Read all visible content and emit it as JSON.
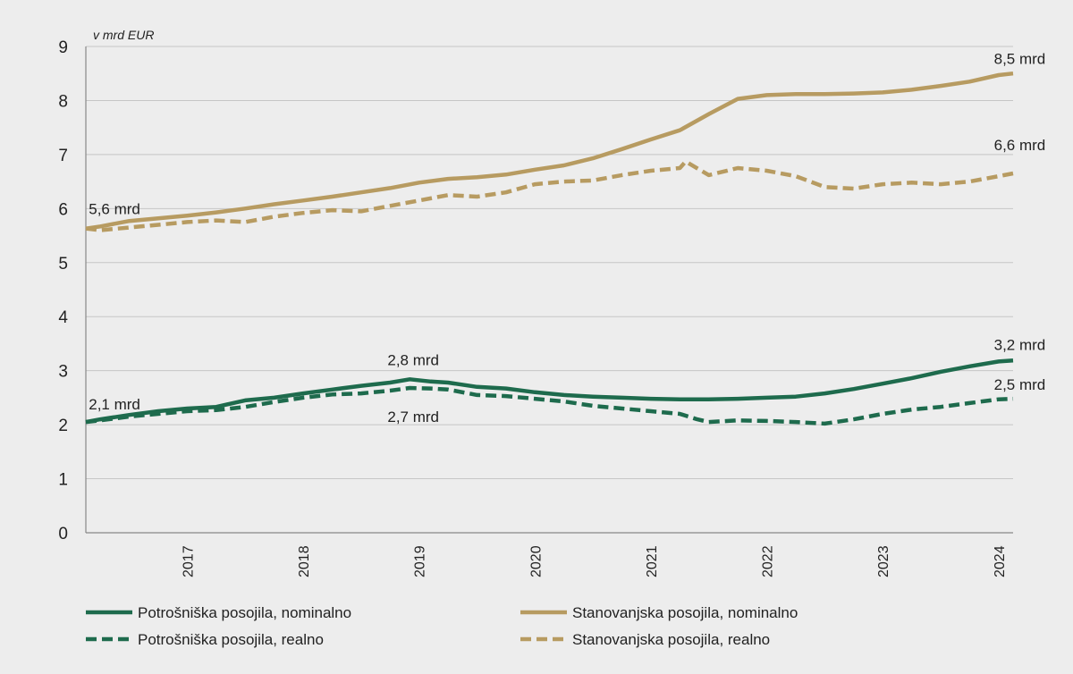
{
  "chart_data": {
    "type": "line",
    "unit_label": "v mrd EUR",
    "ylim": [
      0,
      9
    ],
    "yticks": [
      "0",
      "1",
      "2",
      "3",
      "4",
      "5",
      "6",
      "7",
      "8",
      "9"
    ],
    "x_range": [
      2016.625,
      2024.625
    ],
    "xticks": [
      "2017",
      "2018",
      "2019",
      "2020",
      "2021",
      "2022",
      "2023",
      "2024"
    ],
    "grid": true,
    "legend_position": "bottom",
    "series": [
      {
        "name": "Potrošniška posojila, nominalno",
        "color": "#1e6b4d",
        "dash": false,
        "points": [
          [
            2016.625,
            2.05
          ],
          [
            2016.75,
            2.1
          ],
          [
            2017.0,
            2.18
          ],
          [
            2017.25,
            2.25
          ],
          [
            2017.5,
            2.3
          ],
          [
            2017.75,
            2.33
          ],
          [
            2018.0,
            2.45
          ],
          [
            2018.25,
            2.5
          ],
          [
            2018.5,
            2.58
          ],
          [
            2018.75,
            2.65
          ],
          [
            2019.0,
            2.72
          ],
          [
            2019.25,
            2.78
          ],
          [
            2019.42,
            2.84
          ],
          [
            2019.6,
            2.8
          ],
          [
            2019.75,
            2.78
          ],
          [
            2020.0,
            2.7
          ],
          [
            2020.25,
            2.67
          ],
          [
            2020.5,
            2.6
          ],
          [
            2020.75,
            2.55
          ],
          [
            2021.0,
            2.52
          ],
          [
            2021.25,
            2.5
          ],
          [
            2021.5,
            2.48
          ],
          [
            2021.75,
            2.47
          ],
          [
            2022.0,
            2.47
          ],
          [
            2022.25,
            2.48
          ],
          [
            2022.5,
            2.5
          ],
          [
            2022.75,
            2.52
          ],
          [
            2023.0,
            2.58
          ],
          [
            2023.25,
            2.66
          ],
          [
            2023.5,
            2.76
          ],
          [
            2023.75,
            2.86
          ],
          [
            2024.0,
            2.98
          ],
          [
            2024.25,
            3.08
          ],
          [
            2024.5,
            3.17
          ],
          [
            2024.625,
            3.19
          ]
        ]
      },
      {
        "name": "Potrošniška posojila, realno",
        "color": "#1e6b4d",
        "dash": true,
        "points": [
          [
            2016.625,
            2.05
          ],
          [
            2016.75,
            2.08
          ],
          [
            2017.0,
            2.15
          ],
          [
            2017.25,
            2.2
          ],
          [
            2017.5,
            2.25
          ],
          [
            2017.75,
            2.27
          ],
          [
            2018.0,
            2.33
          ],
          [
            2018.25,
            2.42
          ],
          [
            2018.5,
            2.5
          ],
          [
            2018.75,
            2.56
          ],
          [
            2019.0,
            2.58
          ],
          [
            2019.25,
            2.63
          ],
          [
            2019.42,
            2.68
          ],
          [
            2019.6,
            2.67
          ],
          [
            2019.75,
            2.65
          ],
          [
            2020.0,
            2.55
          ],
          [
            2020.25,
            2.53
          ],
          [
            2020.5,
            2.48
          ],
          [
            2020.75,
            2.43
          ],
          [
            2021.0,
            2.35
          ],
          [
            2021.25,
            2.3
          ],
          [
            2021.5,
            2.25
          ],
          [
            2021.75,
            2.2
          ],
          [
            2021.9,
            2.1
          ],
          [
            2022.0,
            2.05
          ],
          [
            2022.25,
            2.08
          ],
          [
            2022.5,
            2.07
          ],
          [
            2022.75,
            2.05
          ],
          [
            2023.0,
            2.02
          ],
          [
            2023.25,
            2.1
          ],
          [
            2023.5,
            2.2
          ],
          [
            2023.75,
            2.28
          ],
          [
            2024.0,
            2.33
          ],
          [
            2024.25,
            2.4
          ],
          [
            2024.5,
            2.47
          ],
          [
            2024.625,
            2.48
          ]
        ]
      },
      {
        "name": "Stanovanjska posojila, nominalno",
        "color": "#b79b61",
        "dash": false,
        "points": [
          [
            2016.625,
            5.63
          ],
          [
            2016.75,
            5.67
          ],
          [
            2017.0,
            5.77
          ],
          [
            2017.25,
            5.82
          ],
          [
            2017.5,
            5.87
          ],
          [
            2017.75,
            5.93
          ],
          [
            2018.0,
            6.0
          ],
          [
            2018.25,
            6.08
          ],
          [
            2018.5,
            6.15
          ],
          [
            2018.75,
            6.22
          ],
          [
            2019.0,
            6.3
          ],
          [
            2019.25,
            6.38
          ],
          [
            2019.5,
            6.48
          ],
          [
            2019.75,
            6.55
          ],
          [
            2020.0,
            6.58
          ],
          [
            2020.25,
            6.63
          ],
          [
            2020.5,
            6.72
          ],
          [
            2020.75,
            6.8
          ],
          [
            2021.0,
            6.93
          ],
          [
            2021.25,
            7.1
          ],
          [
            2021.5,
            7.28
          ],
          [
            2021.75,
            7.45
          ],
          [
            2022.0,
            7.75
          ],
          [
            2022.25,
            8.03
          ],
          [
            2022.5,
            8.1
          ],
          [
            2022.75,
            8.12
          ],
          [
            2023.0,
            8.12
          ],
          [
            2023.25,
            8.13
          ],
          [
            2023.5,
            8.15
          ],
          [
            2023.75,
            8.2
          ],
          [
            2024.0,
            8.27
          ],
          [
            2024.25,
            8.35
          ],
          [
            2024.5,
            8.47
          ],
          [
            2024.625,
            8.5
          ]
        ]
      },
      {
        "name": "Stanovanjska posojila, realno",
        "color": "#b79b61",
        "dash": true,
        "points": [
          [
            2016.625,
            5.63
          ],
          [
            2016.75,
            5.6
          ],
          [
            2017.0,
            5.65
          ],
          [
            2017.25,
            5.7
          ],
          [
            2017.5,
            5.75
          ],
          [
            2017.75,
            5.78
          ],
          [
            2018.0,
            5.75
          ],
          [
            2018.25,
            5.85
          ],
          [
            2018.5,
            5.92
          ],
          [
            2018.75,
            5.97
          ],
          [
            2019.0,
            5.95
          ],
          [
            2019.25,
            6.05
          ],
          [
            2019.5,
            6.15
          ],
          [
            2019.75,
            6.25
          ],
          [
            2020.0,
            6.22
          ],
          [
            2020.25,
            6.3
          ],
          [
            2020.5,
            6.45
          ],
          [
            2020.75,
            6.5
          ],
          [
            2021.0,
            6.52
          ],
          [
            2021.25,
            6.62
          ],
          [
            2021.5,
            6.7
          ],
          [
            2021.75,
            6.75
          ],
          [
            2021.8,
            6.87
          ],
          [
            2022.0,
            6.62
          ],
          [
            2022.25,
            6.75
          ],
          [
            2022.5,
            6.7
          ],
          [
            2022.75,
            6.6
          ],
          [
            2023.0,
            6.4
          ],
          [
            2023.25,
            6.37
          ],
          [
            2023.5,
            6.45
          ],
          [
            2023.75,
            6.48
          ],
          [
            2024.0,
            6.45
          ],
          [
            2024.25,
            6.5
          ],
          [
            2024.5,
            6.6
          ],
          [
            2024.625,
            6.65
          ]
        ]
      }
    ],
    "annotations": [
      {
        "text": "5,6 mrd",
        "x": 2016.65,
        "y": 5.9
      },
      {
        "text": "8,5 mrd",
        "x": 2024.55,
        "y": 8.68
      },
      {
        "text": "6,6 mrd",
        "x": 2024.55,
        "y": 7.08
      },
      {
        "text": "2,1 mrd",
        "x": 2016.65,
        "y": 2.28
      },
      {
        "text": "2,8 mrd",
        "x": 2019.45,
        "y": 3.1
      },
      {
        "text": "2,7 mrd",
        "x": 2019.45,
        "y": 2.05
      },
      {
        "text": "3,2 mrd",
        "x": 2024.55,
        "y": 3.38
      },
      {
        "text": "2,5 mrd",
        "x": 2024.55,
        "y": 2.65
      }
    ]
  }
}
